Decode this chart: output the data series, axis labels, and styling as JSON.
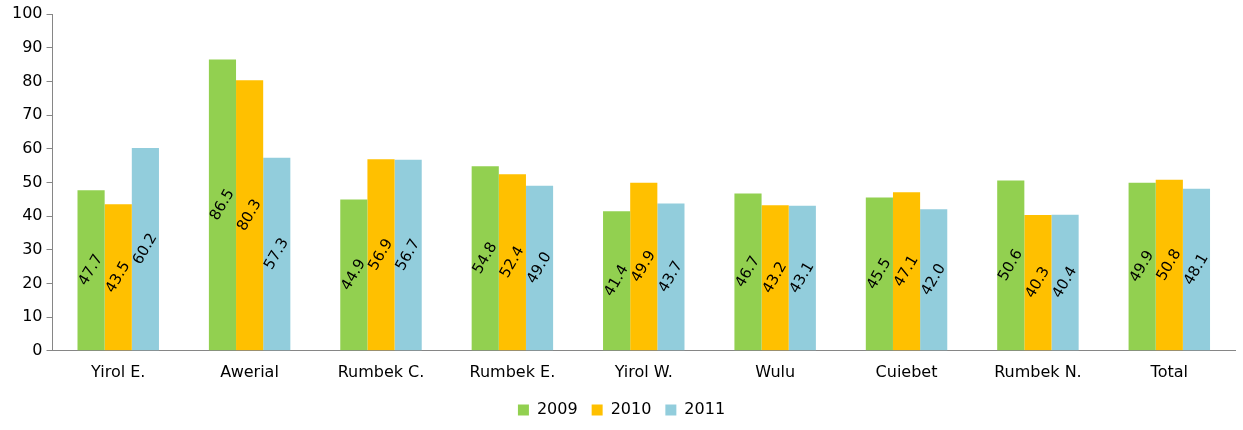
{
  "chart_data": {
    "type": "bar",
    "categories": [
      "Yirol E.",
      "Awerial",
      "Rumbek C.",
      "Rumbek E.",
      "Yirol W.",
      "Wulu",
      "Cuiebet",
      "Rumbek N.",
      "Total"
    ],
    "series": [
      {
        "name": "2009",
        "color": "#92d050",
        "values": [
          47.7,
          86.5,
          44.9,
          54.8,
          41.4,
          46.7,
          45.5,
          50.6,
          49.9
        ],
        "value_labels": [
          "47.7",
          "86.5",
          "44.9",
          "54.8",
          "41.4",
          "46.7",
          "45.5",
          "50.6",
          "49.9"
        ]
      },
      {
        "name": "2010",
        "color": "#ffc000",
        "values": [
          43.5,
          80.3,
          56.9,
          52.4,
          49.9,
          43.2,
          47.1,
          40.3,
          50.8
        ],
        "value_labels": [
          "43.5",
          "80.3",
          "56.9",
          "52.4",
          "49.9",
          "43.2",
          "47.1",
          "40.3",
          "50.8"
        ]
      },
      {
        "name": "2011",
        "color": "#92cddc",
        "values": [
          60.2,
          57.3,
          56.7,
          49.0,
          43.7,
          43.1,
          42.0,
          40.4,
          48.1
        ],
        "value_labels": [
          "60.2",
          "57.3",
          "56.7",
          "49.0",
          "43.7",
          "43.1",
          "42.0",
          "40.4",
          "48.1"
        ]
      }
    ],
    "ylim": [
      0,
      100
    ],
    "yticks": [
      0,
      10,
      20,
      30,
      40,
      50,
      60,
      70,
      80,
      90,
      100
    ],
    "grid": false,
    "legend": "bottom"
  }
}
